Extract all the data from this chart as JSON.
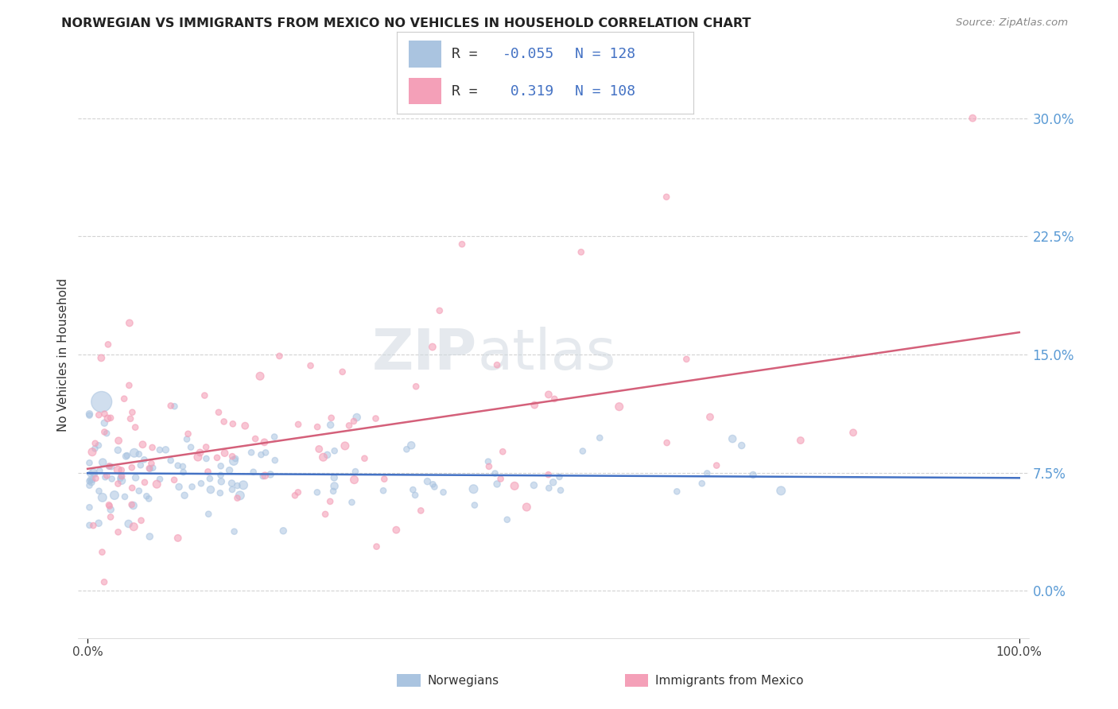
{
  "title": "NORWEGIAN VS IMMIGRANTS FROM MEXICO NO VEHICLES IN HOUSEHOLD CORRELATION CHART",
  "source": "Source: ZipAtlas.com",
  "ylabel": "No Vehicles in Household",
  "legend_labels": [
    "Norwegians",
    "Immigrants from Mexico"
  ],
  "norwegian_color": "#aac4e0",
  "mexican_color": "#f4a0b8",
  "norwegian_line_color": "#4472c4",
  "mexican_line_color": "#d4607a",
  "norwegian_R": -0.055,
  "norwegian_N": 128,
  "mexican_R": 0.319,
  "mexican_N": 108,
  "watermark_zip": "ZIP",
  "watermark_atlas": "atlas",
  "background_color": "#ffffff",
  "grid_color": "#c8c8c8",
  "title_color": "#222222",
  "ytick_color": "#5b9bd5",
  "legend_R_color": "#4472c4",
  "legend_neg_color": "#c0392b"
}
